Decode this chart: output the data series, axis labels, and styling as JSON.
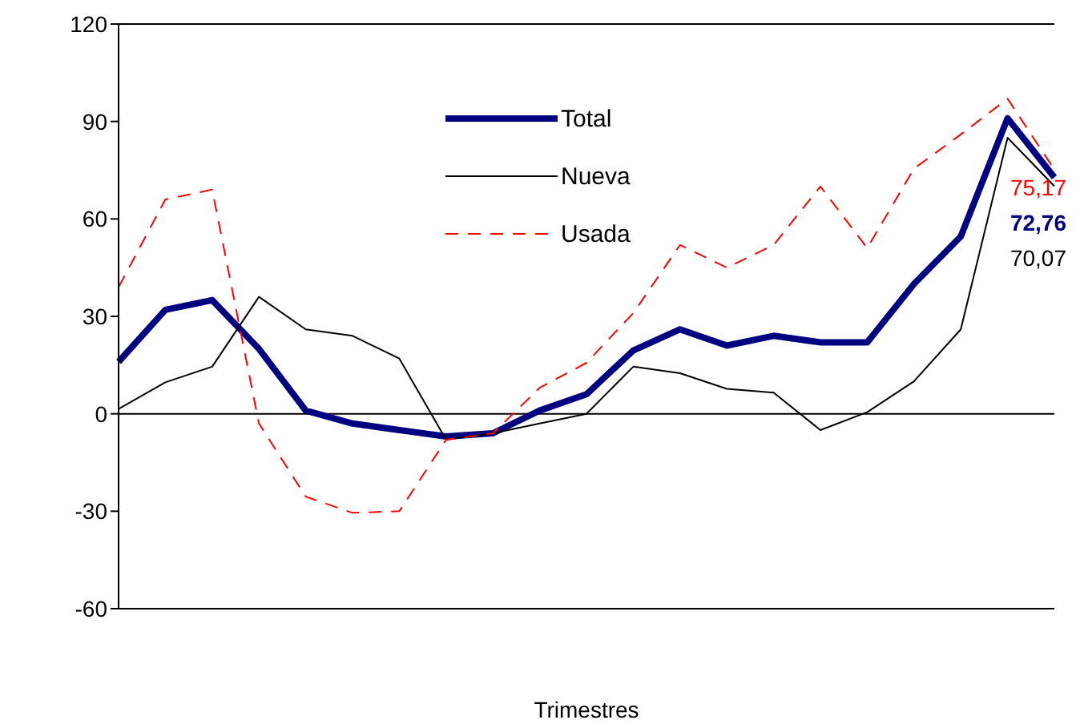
{
  "chart_data": {
    "type": "line",
    "xlabel": "Trimestres",
    "categories": [
      null,
      null,
      null,
      null,
      null,
      null,
      null,
      null,
      null,
      null,
      null,
      null,
      null,
      null,
      null,
      null,
      null,
      null,
      null,
      null,
      null
    ],
    "series": [
      {
        "name": "Total",
        "color": "#000080",
        "line_style": "solid",
        "values": [
          16,
          32,
          35,
          20,
          1,
          -3,
          -5,
          -7,
          -6,
          1,
          6,
          19.5,
          26,
          21,
          24,
          22,
          22,
          40,
          54.6,
          91,
          72.76
        ],
        "value_labels": [
          null,
          null,
          null,
          null,
          null,
          null,
          null,
          null,
          null,
          null,
          null,
          null,
          null,
          null,
          null,
          null,
          null,
          null,
          null,
          null,
          "72,76"
        ]
      },
      {
        "name": "Nueva",
        "color": "#000000",
        "line_style": "solid",
        "values": [
          1.5,
          9.7,
          14.5,
          36,
          26,
          24,
          17,
          -8,
          -6,
          -3,
          0,
          14.5,
          12.5,
          7.7,
          6.5,
          -5,
          0.5,
          10,
          26,
          85,
          70.07
        ],
        "value_labels": [
          null,
          null,
          null,
          null,
          null,
          null,
          null,
          null,
          null,
          null,
          null,
          null,
          null,
          null,
          null,
          null,
          null,
          null,
          null,
          null,
          "70,07"
        ]
      },
      {
        "name": "Usada",
        "color": "#ff0000",
        "line_style": "dashed",
        "values": [
          39,
          66,
          69,
          -3,
          -25.5,
          -30.5,
          -30,
          -8,
          -6,
          8,
          15.7,
          31,
          52,
          45,
          52,
          70,
          51,
          75.5,
          86,
          97,
          75.17
        ],
        "value_labels": [
          null,
          null,
          null,
          null,
          null,
          null,
          null,
          null,
          null,
          null,
          null,
          null,
          null,
          null,
          null,
          null,
          null,
          null,
          null,
          null,
          "75,17"
        ]
      }
    ],
    "ylim": [
      -60,
      120
    ],
    "yticks": [
      -60,
      -30,
      0,
      30,
      60,
      90,
      120
    ],
    "ref_lines": [
      {
        "axis": "y",
        "value": 0,
        "color": "#000000"
      }
    ],
    "grid": false,
    "legend": "top",
    "marker": "none"
  }
}
